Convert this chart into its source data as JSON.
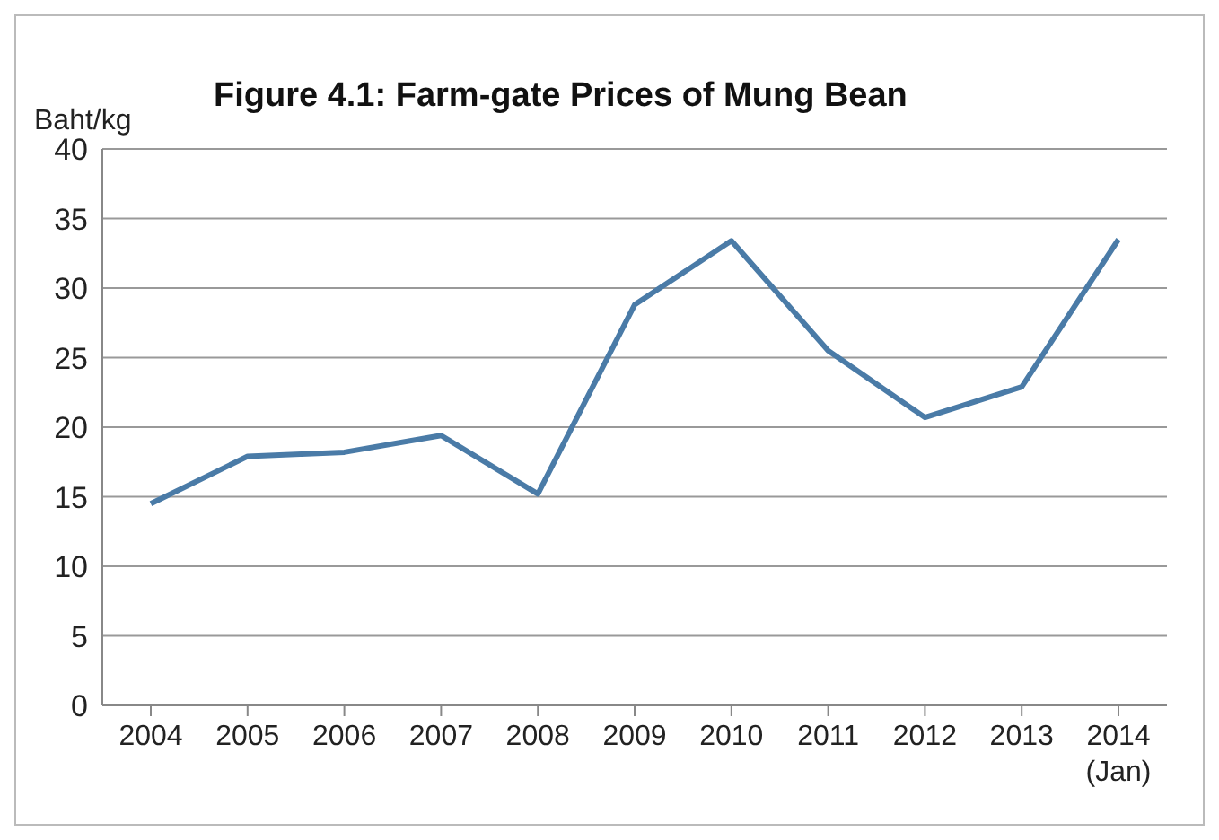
{
  "chart_data": {
    "type": "line",
    "title": "Figure 4.1: Farm-gate Prices of Mung Bean",
    "ylabel": "Baht/kg",
    "categories": [
      "2004",
      "2005",
      "2006",
      "2007",
      "2008",
      "2009",
      "2010",
      "2011",
      "2012",
      "2013",
      "2014\n(Jan)"
    ],
    "series": [
      {
        "color": "#4a7ba7",
        "values": [
          14.5,
          17.9,
          18.2,
          19.4,
          15.2,
          28.8,
          33.4,
          25.5,
          20.7,
          22.9,
          33.5
        ]
      }
    ],
    "ylim": [
      0,
      40
    ],
    "yticks": [
      0,
      5,
      10,
      15,
      20,
      25,
      30,
      35,
      40
    ],
    "grid": "y",
    "legend": false,
    "marker": "none",
    "line_style": "solid"
  }
}
